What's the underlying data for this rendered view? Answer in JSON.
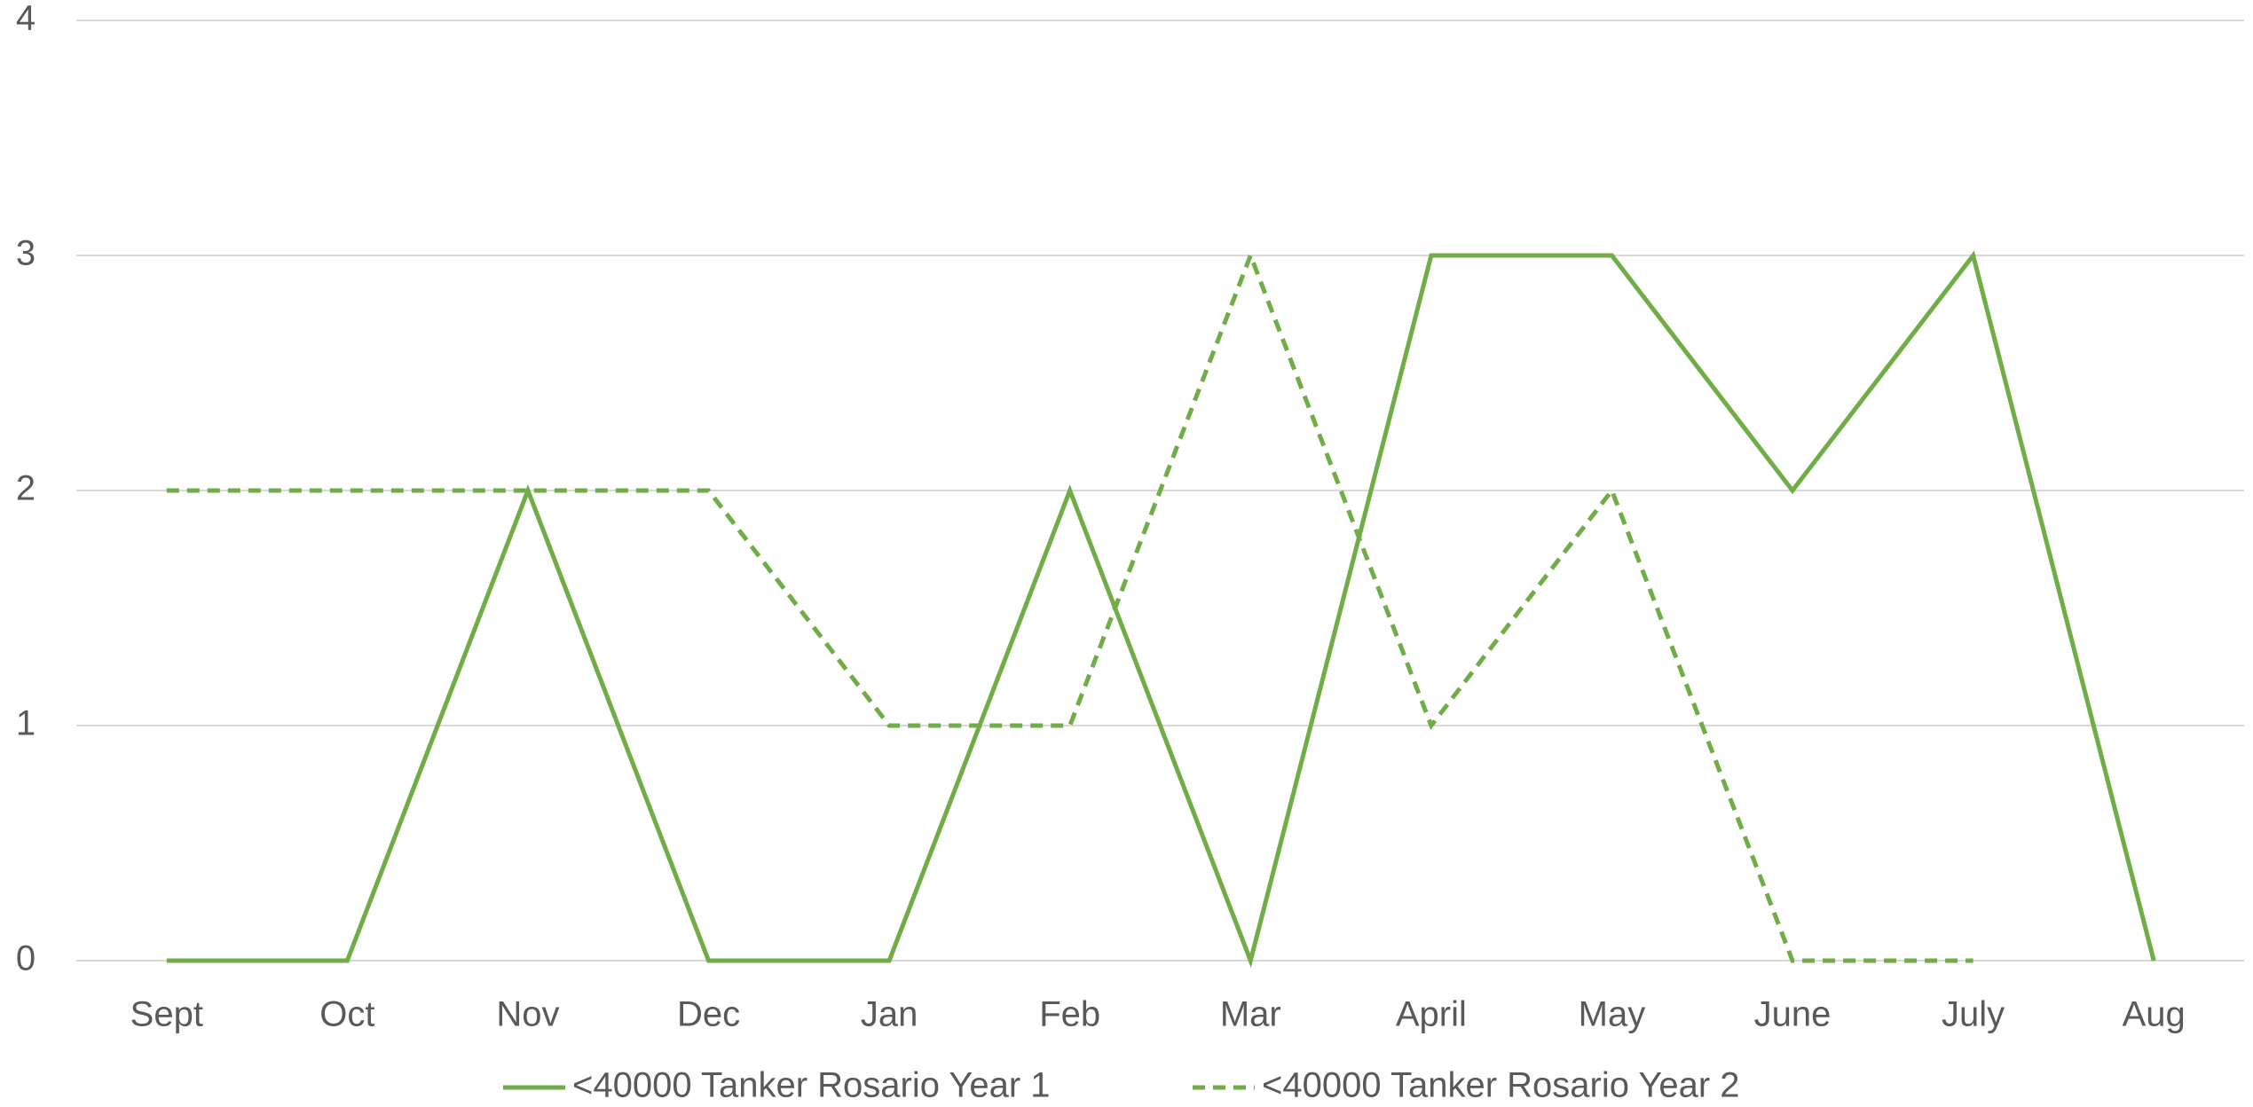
{
  "chart_data": {
    "type": "line",
    "categories": [
      "Sept",
      "Oct",
      "Nov",
      "Dec",
      "Jan",
      "Feb",
      "Mar",
      "April",
      "May",
      "June",
      "July",
      "Aug"
    ],
    "series": [
      {
        "name": "<40000 Tanker Rosario Year 1",
        "color": "#70ad47",
        "line_style": "solid",
        "values": [
          0,
          0,
          2,
          0,
          0,
          2,
          0,
          3,
          3,
          2,
          3,
          0
        ]
      },
      {
        "name": "<40000 Tanker Rosario Year 2",
        "color": "#70ad47",
        "line_style": "dashed",
        "values": [
          2,
          2,
          2,
          2,
          1,
          1,
          3,
          1,
          2,
          0,
          0,
          null
        ]
      }
    ],
    "ylim": [
      0,
      4
    ],
    "yticks": [
      0,
      1,
      2,
      3,
      4
    ],
    "grid": true,
    "legend": "bottom"
  }
}
